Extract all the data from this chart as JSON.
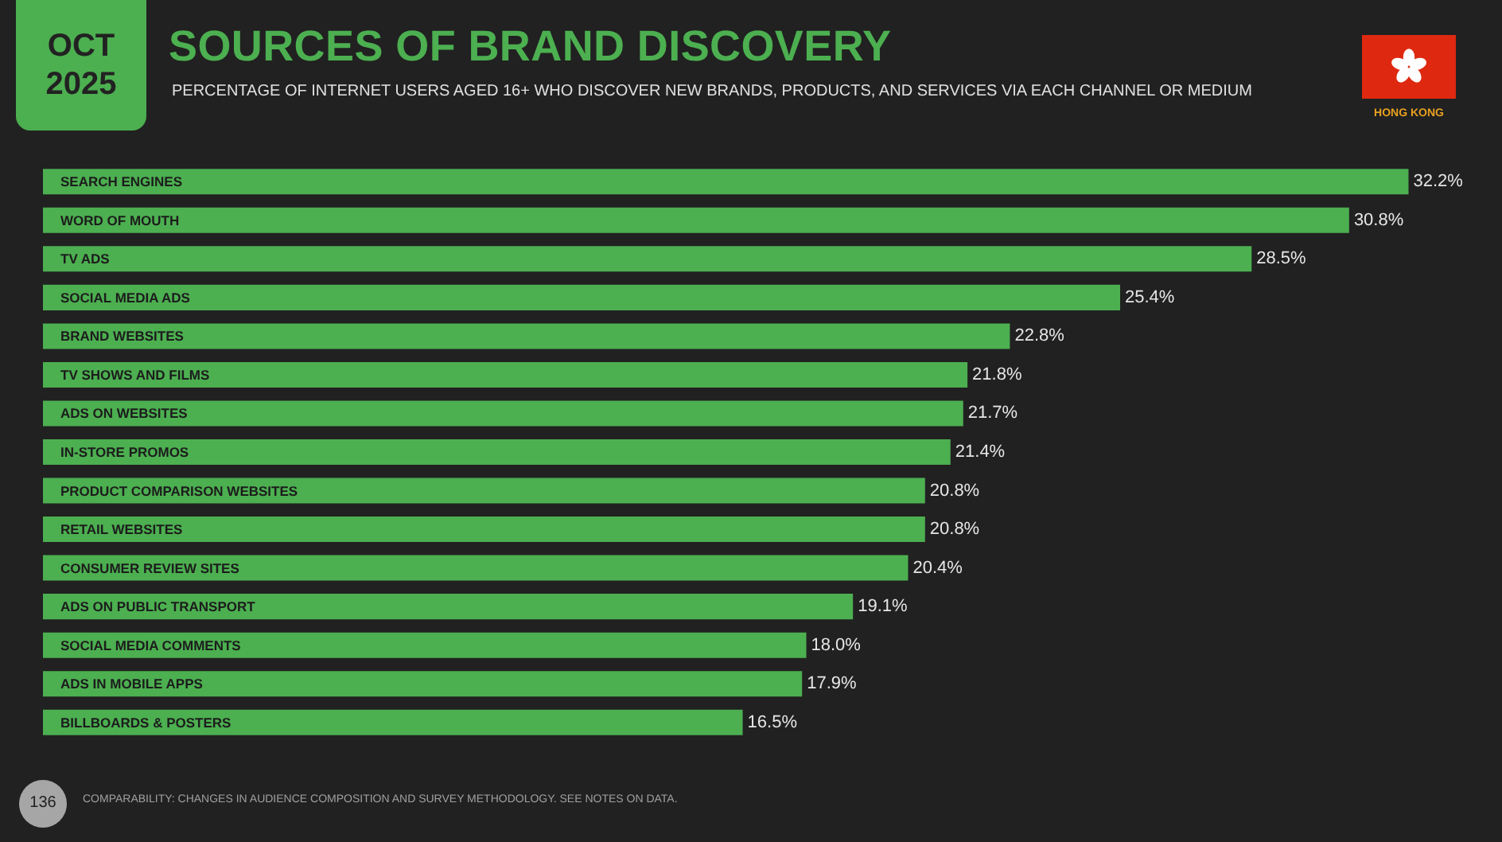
{
  "chart_data": {
    "type": "bar",
    "orientation": "horizontal",
    "title": "SOURCES OF BRAND DISCOVERY",
    "subtitle": "PERCENTAGE OF INTERNET USERS AGED 16+ WHO DISCOVER NEW BRANDS, PRODUCTS, AND SERVICES VIA EACH CHANNEL OR MEDIUM",
    "annotations": [
      "OCT 2025",
      "HONG KONG",
      "COMPARABILITY: CHANGES IN AUDIENCE COMPOSITION AND SURVEY METHODOLOGY. SEE NOTES ON DATA.",
      "136"
    ],
    "categories": [
      "SEARCH ENGINES",
      "WORD OF MOUTH",
      "TV ADS",
      "SOCIAL MEDIA ADS",
      "BRAND WEBSITES",
      "TV SHOWS AND FILMS",
      "ADS ON WEBSITES",
      "IN-STORE PROMOS",
      "PRODUCT COMPARISON WEBSITES",
      "RETAIL WEBSITES",
      "CONSUMER REVIEW SITES",
      "ADS ON PUBLIC TRANSPORT",
      "SOCIAL MEDIA COMMENTS",
      "ADS IN MOBILE APPS",
      "BILLBOARDS & POSTERS"
    ],
    "values": [
      32.2,
      30.8,
      28.5,
      25.4,
      22.8,
      21.8,
      21.7,
      21.4,
      20.8,
      20.8,
      20.4,
      19.1,
      18.0,
      17.9,
      16.5
    ],
    "value_labels": [
      "32.2%",
      "30.8%",
      "28.5%",
      "25.4%",
      "22.8%",
      "21.8%",
      "21.7%",
      "21.4%",
      "20.8%",
      "20.8%",
      "20.4%",
      "19.1%",
      "18.0%",
      "17.9%",
      "16.5%"
    ],
    "color": "#4caf50",
    "tick_labels": "y"
  }
}
